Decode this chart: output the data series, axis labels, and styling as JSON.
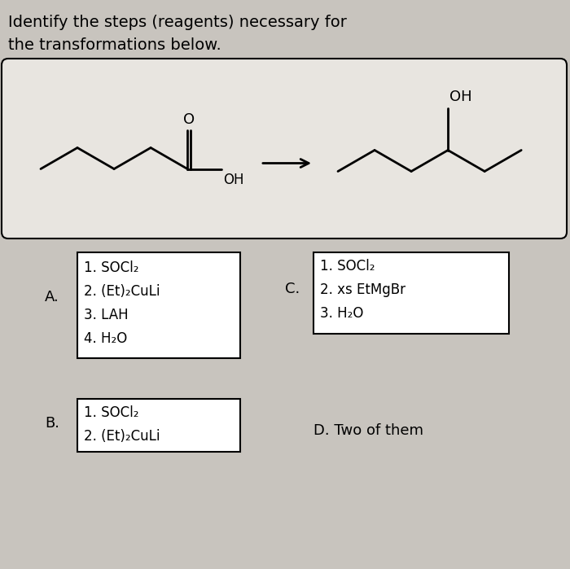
{
  "bg_color": "#c8c4be",
  "reaction_box_bg": "#e8e5e0",
  "answer_box_bg": "#ffffff",
  "title_line1": "Identify the steps (reagents) necessary for",
  "title_line2": "the transformations below.",
  "answer_A": [
    "1. SOCl₂",
    "2. (Et)₂CuLi",
    "3. LAH",
    "4. H₂O"
  ],
  "answer_B": [
    "1. SOCl₂",
    "2. (Et)₂CuLi"
  ],
  "answer_C": [
    "1. SOCl₂",
    "2. xs EtMgBr",
    "3. H₂O"
  ],
  "answer_D": "D. Two of them",
  "label_A": "A.",
  "label_B": "B.",
  "label_C": "C."
}
